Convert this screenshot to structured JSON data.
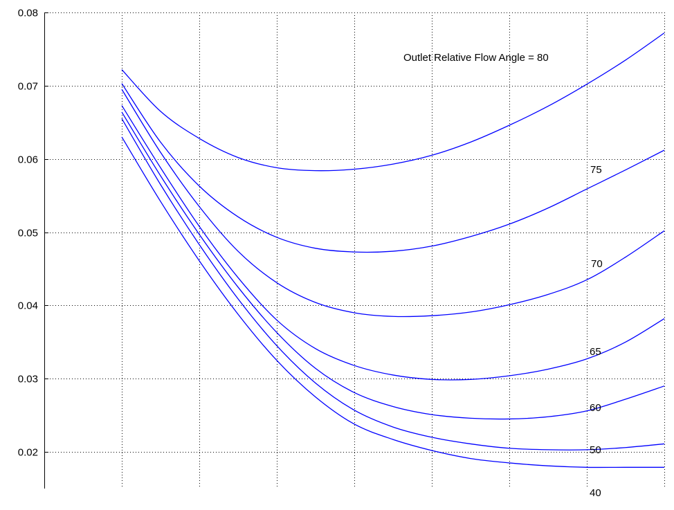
{
  "chart_data": {
    "type": "line",
    "title": "",
    "xlabel": "",
    "ylabel": "",
    "grid": true,
    "legend": "none",
    "line_color": "#0000ff",
    "xlim": [
      0,
      8
    ],
    "ylim": [
      0.015,
      0.08
    ],
    "x_grid": [
      1,
      2,
      3,
      4,
      5,
      6,
      7,
      8
    ],
    "yticks": [
      0.02,
      0.03,
      0.04,
      0.05,
      0.06,
      0.07,
      0.08
    ],
    "ytick_labels": [
      "0.02",
      "0.03",
      "0.04",
      "0.05",
      "0.06",
      "0.07",
      "0.08"
    ],
    "series": [
      {
        "label": "Outlet Relative Flow Angle = 80",
        "x": [
          1,
          1.5,
          2,
          2.5,
          3,
          3.5,
          4,
          4.5,
          5,
          5.5,
          6,
          6.5,
          7,
          7.5,
          8
        ],
        "y": [
          0.0722,
          0.0665,
          0.0628,
          0.0602,
          0.0588,
          0.0584,
          0.0586,
          0.0593,
          0.0605,
          0.0623,
          0.0646,
          0.0672,
          0.0702,
          0.0735,
          0.0772
        ]
      },
      {
        "label": "75",
        "x": [
          1,
          1.5,
          2,
          2.5,
          3,
          3.5,
          4,
          4.5,
          5,
          5.5,
          6,
          6.5,
          7,
          7.5,
          8
        ],
        "y": [
          0.0703,
          0.0623,
          0.0563,
          0.0521,
          0.0493,
          0.0478,
          0.0473,
          0.0474,
          0.0481,
          0.0494,
          0.0511,
          0.0533,
          0.0559,
          0.0585,
          0.0612
        ]
      },
      {
        "label": "70",
        "x": [
          1,
          1.5,
          2,
          2.5,
          3,
          3.5,
          4,
          4.5,
          5,
          5.5,
          6,
          6.5,
          7,
          7.5,
          8
        ],
        "y": [
          0.0695,
          0.0609,
          0.0535,
          0.0474,
          0.0431,
          0.0404,
          0.039,
          0.0385,
          0.0386,
          0.0391,
          0.0401,
          0.0415,
          0.0435,
          0.0466,
          0.0502
        ]
      },
      {
        "label": "65",
        "x": [
          1,
          1.5,
          2,
          2.5,
          3,
          3.5,
          4,
          4.5,
          5,
          5.5,
          6,
          6.5,
          7,
          7.5,
          8
        ],
        "y": [
          0.0673,
          0.0588,
          0.0508,
          0.0438,
          0.038,
          0.0341,
          0.0318,
          0.0305,
          0.0299,
          0.0299,
          0.0304,
          0.0313,
          0.0327,
          0.035,
          0.0382
        ]
      },
      {
        "label": "60",
        "x": [
          1,
          1.5,
          2,
          2.5,
          3,
          3.5,
          4,
          4.5,
          5,
          5.5,
          6,
          6.5,
          7,
          7.5,
          8
        ],
        "y": [
          0.0664,
          0.0577,
          0.0497,
          0.0425,
          0.0363,
          0.0314,
          0.0281,
          0.0262,
          0.0251,
          0.0246,
          0.0245,
          0.0248,
          0.0256,
          0.0272,
          0.029
        ]
      },
      {
        "label": "50",
        "x": [
          1,
          1.5,
          2,
          2.5,
          3,
          3.5,
          4,
          4.5,
          5,
          5.5,
          6,
          6.5,
          7,
          7.5,
          8
        ],
        "y": [
          0.0655,
          0.0565,
          0.0483,
          0.0409,
          0.0345,
          0.0294,
          0.0257,
          0.0234,
          0.022,
          0.0211,
          0.0205,
          0.0203,
          0.0203,
          0.0206,
          0.0211
        ]
      },
      {
        "label": "40",
        "x": [
          1,
          1.5,
          2,
          2.5,
          3,
          3.5,
          4,
          4.5,
          5,
          5.5,
          6,
          6.5,
          7,
          7.5,
          8
        ],
        "y": [
          0.063,
          0.0542,
          0.0461,
          0.0388,
          0.0325,
          0.0275,
          0.0238,
          0.0217,
          0.0202,
          0.0191,
          0.0185,
          0.0181,
          0.0179,
          0.0179,
          0.0179
        ]
      }
    ]
  }
}
